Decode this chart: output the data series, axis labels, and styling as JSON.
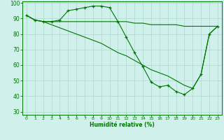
{
  "line1": {
    "x": [
      0,
      1,
      2,
      3,
      4,
      5,
      6,
      7,
      8,
      9,
      10,
      11,
      12,
      13,
      14,
      15,
      16,
      17,
      18,
      19,
      20,
      21,
      22,
      23
    ],
    "y": [
      92,
      89,
      88,
      88,
      89,
      95,
      96,
      97,
      98,
      98,
      97,
      88,
      78,
      68,
      59,
      49,
      46,
      47,
      43,
      41,
      45,
      54,
      80,
      85
    ]
  },
  "line2": {
    "x": [
      0,
      1,
      2,
      3,
      4,
      5,
      6,
      7,
      8,
      9,
      10,
      11,
      12,
      13,
      14,
      15,
      16,
      17,
      18,
      19,
      20,
      21,
      22,
      23
    ],
    "y": [
      92,
      89,
      88,
      88,
      88,
      88,
      88,
      88,
      88,
      88,
      88,
      88,
      88,
      87,
      87,
      86,
      86,
      86,
      86,
      85,
      85,
      85,
      85,
      85
    ]
  },
  "line3": {
    "x": [
      0,
      1,
      2,
      3,
      4,
      5,
      6,
      7,
      8,
      9,
      10,
      11,
      12,
      13,
      14,
      15,
      16,
      17,
      18,
      19,
      20,
      21,
      22,
      23
    ],
    "y": [
      92,
      89,
      88,
      86,
      84,
      82,
      80,
      78,
      76,
      74,
      71,
      68,
      66,
      63,
      60,
      57,
      55,
      53,
      50,
      47,
      45,
      54,
      80,
      85
    ]
  },
  "xlabel": "Humidité relative (%)",
  "xlim": [
    -0.5,
    23.5
  ],
  "ylim": [
    28,
    101
  ],
  "yticks": [
    30,
    40,
    50,
    60,
    70,
    80,
    90,
    100
  ],
  "xticks": [
    0,
    1,
    2,
    3,
    4,
    5,
    6,
    7,
    8,
    9,
    10,
    11,
    12,
    13,
    14,
    15,
    16,
    17,
    18,
    19,
    20,
    21,
    22,
    23
  ],
  "bg_color": "#d0f0ec",
  "grid_color": "#aad8cc",
  "line_color": "#007700"
}
